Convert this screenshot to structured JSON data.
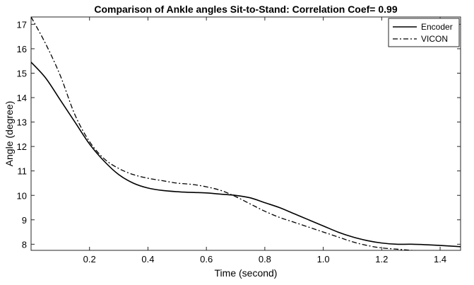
{
  "chart_data": {
    "type": "line",
    "title": "Comparison of Ankle angles Sit-to-Stand: Correlation Coef= 0.99",
    "xlabel": "Time (second)",
    "ylabel": "Angle (degree)",
    "xlim": [
      0,
      1.47
    ],
    "ylim": [
      7.75,
      17.3
    ],
    "xticks": [
      "0.2",
      "0.4",
      "0.6",
      "0.8",
      "1.0",
      "1.2",
      "1.4"
    ],
    "yticks": [
      "8",
      "9",
      "10",
      "11",
      "12",
      "13",
      "14",
      "15",
      "16",
      "17"
    ],
    "grid": false,
    "legend_position": "top-right",
    "series": [
      {
        "name": "Encoder",
        "style": "solid",
        "color": "#000000",
        "x": [
          0,
          0.05,
          0.1,
          0.15,
          0.2,
          0.25,
          0.3,
          0.35,
          0.4,
          0.45,
          0.5,
          0.55,
          0.6,
          0.65,
          0.7,
          0.75,
          0.8,
          0.85,
          0.9,
          0.95,
          1.0,
          1.05,
          1.1,
          1.15,
          1.2,
          1.25,
          1.3,
          1.35,
          1.4,
          1.47
        ],
        "y": [
          15.45,
          14.8,
          13.9,
          13.0,
          12.1,
          11.4,
          10.85,
          10.5,
          10.3,
          10.2,
          10.15,
          10.12,
          10.1,
          10.05,
          10.0,
          9.9,
          9.7,
          9.5,
          9.25,
          9.0,
          8.75,
          8.5,
          8.3,
          8.15,
          8.05,
          8.0,
          8.0,
          7.98,
          7.95,
          7.9
        ]
      },
      {
        "name": "VICON",
        "style": "dashdot",
        "color": "#000000",
        "x": [
          0,
          0.05,
          0.1,
          0.15,
          0.2,
          0.25,
          0.3,
          0.35,
          0.4,
          0.45,
          0.5,
          0.55,
          0.6,
          0.65,
          0.7,
          0.75,
          0.8,
          0.85,
          0.9,
          0.95,
          1.0,
          1.05,
          1.1,
          1.15,
          1.2,
          1.25,
          1.3,
          1.35,
          1.4,
          1.47
        ],
        "y": [
          17.3,
          16.2,
          14.9,
          13.3,
          12.2,
          11.5,
          11.1,
          10.85,
          10.7,
          10.6,
          10.5,
          10.45,
          10.35,
          10.2,
          9.95,
          9.65,
          9.35,
          9.1,
          8.9,
          8.7,
          8.5,
          8.3,
          8.1,
          7.95,
          7.85,
          7.8,
          7.75,
          7.7,
          7.65,
          7.7
        ]
      }
    ]
  }
}
